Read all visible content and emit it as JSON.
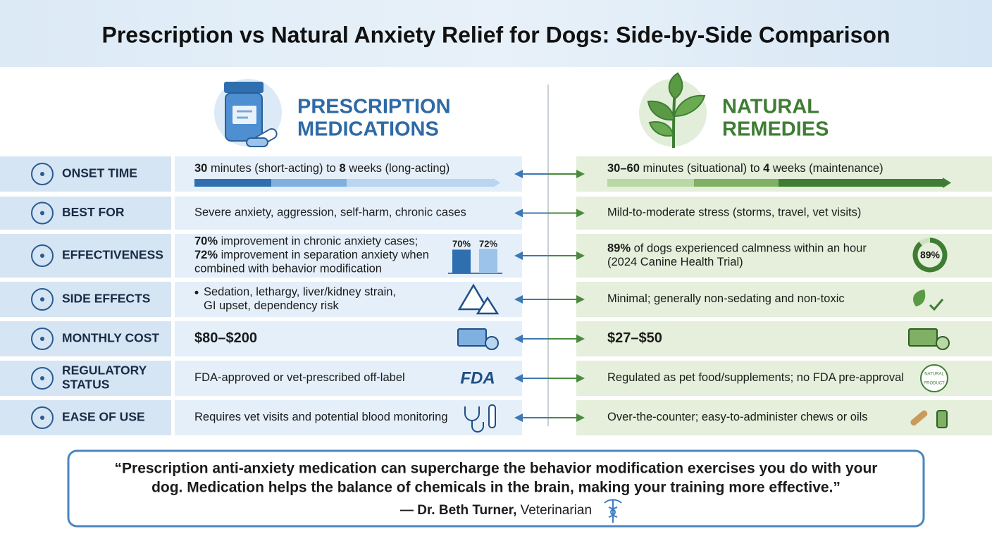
{
  "header": {
    "title": "Prescription vs Natural Anxiety Relief for Dogs: Side-by-Side Comparison"
  },
  "columns": {
    "prescription": [
      "PRESCRIPTION",
      "MEDICATIONS"
    ],
    "natural": [
      "NATURAL",
      "REMEDIES"
    ]
  },
  "rows": [
    {
      "label": [
        "ONSET TIME"
      ],
      "prescription": [
        [
          "30",
          " minutes (short-acting) to ",
          "8",
          " weeks (long-acting)"
        ]
      ],
      "natural": [
        [
          "30–60",
          " minutes (situational) to ",
          "4",
          " weeks (maintenance)"
        ]
      ]
    },
    {
      "label": [
        "BEST FOR"
      ],
      "prescription": [
        [
          "Severe anxiety, aggression, self-harm, chronic cases"
        ]
      ],
      "natural": [
        [
          "Mild-to-moderate stress (storms, travel, vet visits)"
        ]
      ]
    },
    {
      "label": [
        "EFFECTIVENESS"
      ],
      "prescription": [
        [
          "70%",
          " improvement in chronic anxiety cases;"
        ],
        [
          "72%",
          " improvement in separation anxiety when"
        ],
        [
          "combined with behavior modification"
        ]
      ],
      "natural": [
        [
          "89%",
          " of dogs experienced calmness within an hour"
        ],
        [
          "(2024 Canine Health Trial)"
        ]
      ],
      "prescription_chart": {
        "type": "bar",
        "values": [
          70,
          72
        ],
        "value_labels": [
          "70%",
          "72%"
        ],
        "ylim": [
          0,
          100
        ]
      },
      "natural_chart": {
        "type": "donut",
        "value": 89,
        "value_label": "89%"
      }
    },
    {
      "label": [
        "SIDE EFFECTS"
      ],
      "prescription": [
        [
          "Sedation, lethargy, liver/kidney strain,"
        ],
        [
          "GI upset, dependency risk"
        ]
      ],
      "natural": [
        [
          "Minimal; generally non-sedating and non-toxic"
        ]
      ]
    },
    {
      "label": [
        "MONTHLY COST"
      ],
      "prescription": [
        [
          "$80–$200"
        ]
      ],
      "natural": [
        [
          "$27–$50"
        ]
      ]
    },
    {
      "label": [
        "REGULATORY",
        "STATUS"
      ],
      "prescription": [
        [
          "FDA-approved or vet-prescribed off-label"
        ]
      ],
      "natural": [
        [
          "Regulated as pet food/supplements; no FDA pre-approval"
        ]
      ],
      "prescription_badge": "FDA",
      "natural_badge": [
        "NATURAL",
        "PRODUCT"
      ]
    },
    {
      "label": [
        "EASE OF USE"
      ],
      "prescription": [
        [
          "Requires vet visits and potential blood monitoring"
        ]
      ],
      "natural": [
        [
          "Over-the-counter; easy-to-administer chews or oils"
        ]
      ]
    }
  ],
  "quote": {
    "lines": [
      "“Prescription anti-anxiety medication can supercharge the behavior modification exercises you do with your",
      "dog. Medication helps the balance of chemicals in the brain, making your training more effective.”"
    ],
    "attribution": [
      "— Dr. Beth Turner,",
      " Veterinarian"
    ]
  }
}
